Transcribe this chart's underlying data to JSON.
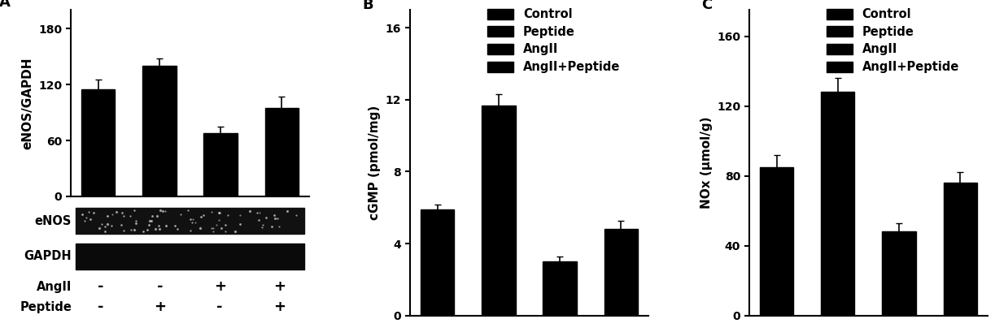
{
  "panel_A": {
    "label": "A",
    "bar_values": [
      115,
      140,
      68,
      95
    ],
    "bar_errors": [
      10,
      8,
      7,
      12
    ],
    "ylabel": "eNOS/GAPDH",
    "yticks": [
      0,
      60,
      120,
      180
    ],
    "ylim": [
      0,
      200
    ],
    "bar_color": "#000000",
    "angII_labels": [
      "-",
      "-",
      "+",
      "+"
    ],
    "peptide_labels": [
      "-",
      "+",
      "-",
      "+"
    ],
    "enos_label": "eNOS",
    "gapdh_label": "GAPDH",
    "angII_row_label": "AngII",
    "peptide_row_label": "Peptide"
  },
  "panel_B": {
    "label": "B",
    "bar_values": [
      5.9,
      11.7,
      3.0,
      4.8
    ],
    "bar_errors": [
      0.25,
      0.6,
      0.3,
      0.45
    ],
    "ylabel": "cGMP (pmol/mg)",
    "yticks": [
      0,
      4,
      8,
      12,
      16
    ],
    "ylim": [
      0,
      17
    ],
    "bar_color": "#000000",
    "legend_labels": [
      "Control",
      "Peptide",
      "AngII",
      "AngII+Peptide"
    ]
  },
  "panel_C": {
    "label": "C",
    "bar_values": [
      85,
      128,
      48,
      76
    ],
    "bar_errors": [
      7,
      8,
      5,
      6
    ],
    "ylabel": "NOx (μmol/g)",
    "yticks": [
      0,
      40,
      80,
      120,
      160
    ],
    "ylim": [
      0,
      175
    ],
    "bar_color": "#000000",
    "legend_labels": [
      "Control",
      "Peptide",
      "AngII",
      "AngII+Peptide"
    ]
  },
  "background_color": "#ffffff",
  "bar_width": 0.55,
  "font_size_label": 11,
  "font_size_tick": 10,
  "font_size_panel": 13
}
